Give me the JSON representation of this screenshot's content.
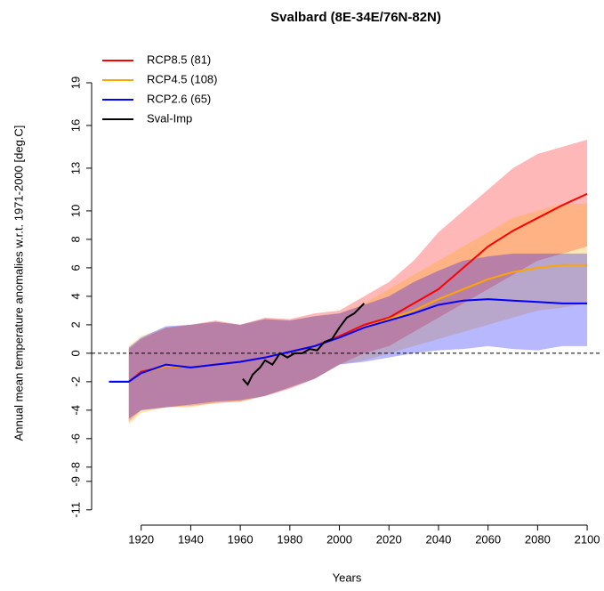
{
  "chart_data": {
    "type": "line",
    "title": "Svalbard (8E-34E/76N-82N)",
    "xlabel": "Years",
    "ylabel": "Annual mean temperature anomalies w.r.t. 1971-2000 [deg.C]",
    "x": [
      1907,
      1915,
      1920,
      1930,
      1940,
      1950,
      1960,
      1970,
      1980,
      1990,
      2000,
      2010,
      2020,
      2030,
      2040,
      2050,
      2060,
      2070,
      2080,
      2090,
      2100
    ],
    "series": [
      {
        "name": "RCP8.5 (81)",
        "color": "#ff0000",
        "values": [
          -2,
          -2,
          -1.3,
          -0.9,
          -1,
          -0.8,
          -0.6,
          -0.3,
          0.1,
          0.5,
          1.2,
          2,
          2.5,
          3.5,
          4.5,
          6,
          7.5,
          8.6,
          9.5,
          10.4,
          11.2
        ],
        "upper": [
          null,
          0.3,
          1,
          1.8,
          2,
          2.3,
          2,
          2.5,
          2.4,
          2.8,
          3,
          4,
          5,
          6.5,
          8.5,
          10,
          11.5,
          13,
          14,
          14.5,
          15
        ],
        "lower": [
          null,
          -4.8,
          -4,
          -3.8,
          -3.7,
          -3.5,
          -3.4,
          -3,
          -2.5,
          -1.8,
          -0.8,
          0,
          0.5,
          1.5,
          2.5,
          3.5,
          4.5,
          5.5,
          6.5,
          7,
          7.5
        ]
      },
      {
        "name": "RCP4.5 (108)",
        "color": "#ffa500",
        "values": [
          -2,
          -2,
          -1.4,
          -0.9,
          -1,
          -0.8,
          -0.6,
          -0.3,
          0.1,
          0.5,
          1.1,
          1.8,
          2.4,
          3,
          3.8,
          4.5,
          5.2,
          5.7,
          6,
          6.2,
          6.2
        ],
        "upper": [
          null,
          0.5,
          1.2,
          1.8,
          2,
          2.2,
          2,
          2.4,
          2.3,
          2.6,
          2.8,
          3.5,
          4.5,
          5.5,
          6.5,
          7.5,
          8.5,
          9.5,
          10,
          10.5,
          10.5
        ],
        "lower": [
          null,
          -5,
          -4.2,
          -3.8,
          -3.8,
          -3.5,
          -3.4,
          -3,
          -2.4,
          -1.8,
          -0.8,
          -0.5,
          0,
          0.5,
          1,
          1.5,
          2,
          2.5,
          3,
          3.2,
          3.5
        ]
      },
      {
        "name": "RCP2.6 (65)",
        "color": "#0000ff",
        "values": [
          -2,
          -2,
          -1.4,
          -0.8,
          -1,
          -0.8,
          -0.6,
          -0.3,
          0.1,
          0.5,
          1.1,
          1.8,
          2.3,
          2.8,
          3.4,
          3.7,
          3.8,
          3.7,
          3.6,
          3.5,
          3.5
        ],
        "upper": [
          null,
          0.4,
          1.1,
          1.9,
          2,
          2.2,
          2,
          2.4,
          2.3,
          2.6,
          2.8,
          3.4,
          4,
          5,
          5.8,
          6.5,
          6.8,
          7,
          7,
          7,
          7
        ],
        "lower": [
          null,
          -4.6,
          -4,
          -3.8,
          -3.6,
          -3.4,
          -3.3,
          -3,
          -2.4,
          -1.8,
          -0.8,
          -0.6,
          -0.3,
          0,
          0.2,
          0.3,
          0.5,
          0.3,
          0.2,
          0.5,
          0.5
        ]
      },
      {
        "name": "Sval-Imp",
        "color": "#000000",
        "x": [
          1961,
          1963,
          1965,
          1968,
          1970,
          1973,
          1976,
          1979,
          1982,
          1985,
          1988,
          1991,
          1994,
          1997,
          2000,
          2003,
          2006,
          2010
        ],
        "values": [
          -1.8,
          -2.2,
          -1.5,
          -1,
          -0.5,
          -0.8,
          0,
          -0.3,
          0,
          0,
          0.3,
          0.2,
          0.8,
          1,
          1.8,
          2.5,
          2.8,
          3.5
        ]
      }
    ],
    "xlim": [
      1900,
      2105
    ],
    "ylim": [
      -11.2,
      21
    ],
    "xticks": [
      1920,
      1940,
      1960,
      1980,
      2000,
      2020,
      2040,
      2060,
      2080,
      2100
    ],
    "yticks": [
      -11,
      -9,
      -8,
      -6,
      -4,
      -2,
      0,
      2,
      4,
      6,
      8,
      10,
      13,
      16,
      19
    ],
    "hline": 0,
    "legend": "top-left"
  }
}
